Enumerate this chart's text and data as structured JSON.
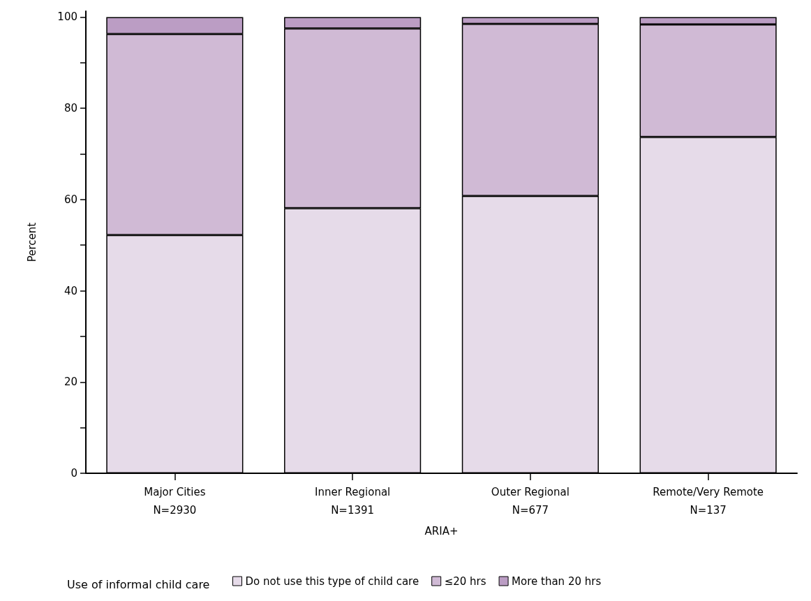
{
  "chart_data": {
    "type": "bar",
    "stacked": true,
    "categories": [
      "Major Cities\nN=2930",
      "Inner Regional\nN=1391",
      "Outer Regional\nN=677",
      "Remote/Very Remote\nN=137"
    ],
    "series": [
      {
        "name": "Do not use this type of child care",
        "color": "#e6dbe9",
        "values": [
          52.2,
          58.1,
          60.8,
          73.7
        ]
      },
      {
        "name": "≤20 hrs",
        "color": "#d0bad5",
        "values": [
          44.1,
          39.4,
          37.7,
          24.7
        ]
      },
      {
        "name": "More than 20 hrs",
        "color": "#bb9dc4",
        "values": [
          3.7,
          2.5,
          1.5,
          1.6
        ]
      }
    ],
    "xlabel": "ARIA+",
    "ylabel": "Percent",
    "legend_title": "Use of informal child care",
    "legend": "bottom",
    "ylim": [
      0,
      101.3
    ],
    "yticks": [
      0,
      {
        "value": 10,
        "label": null
      },
      20,
      {
        "value": 30,
        "label": null
      },
      40,
      {
        "value": 50,
        "label": null
      },
      60,
      {
        "value": 70,
        "label": null
      },
      80,
      {
        "value": 90,
        "label": null
      },
      100
    ],
    "grid": false
  }
}
